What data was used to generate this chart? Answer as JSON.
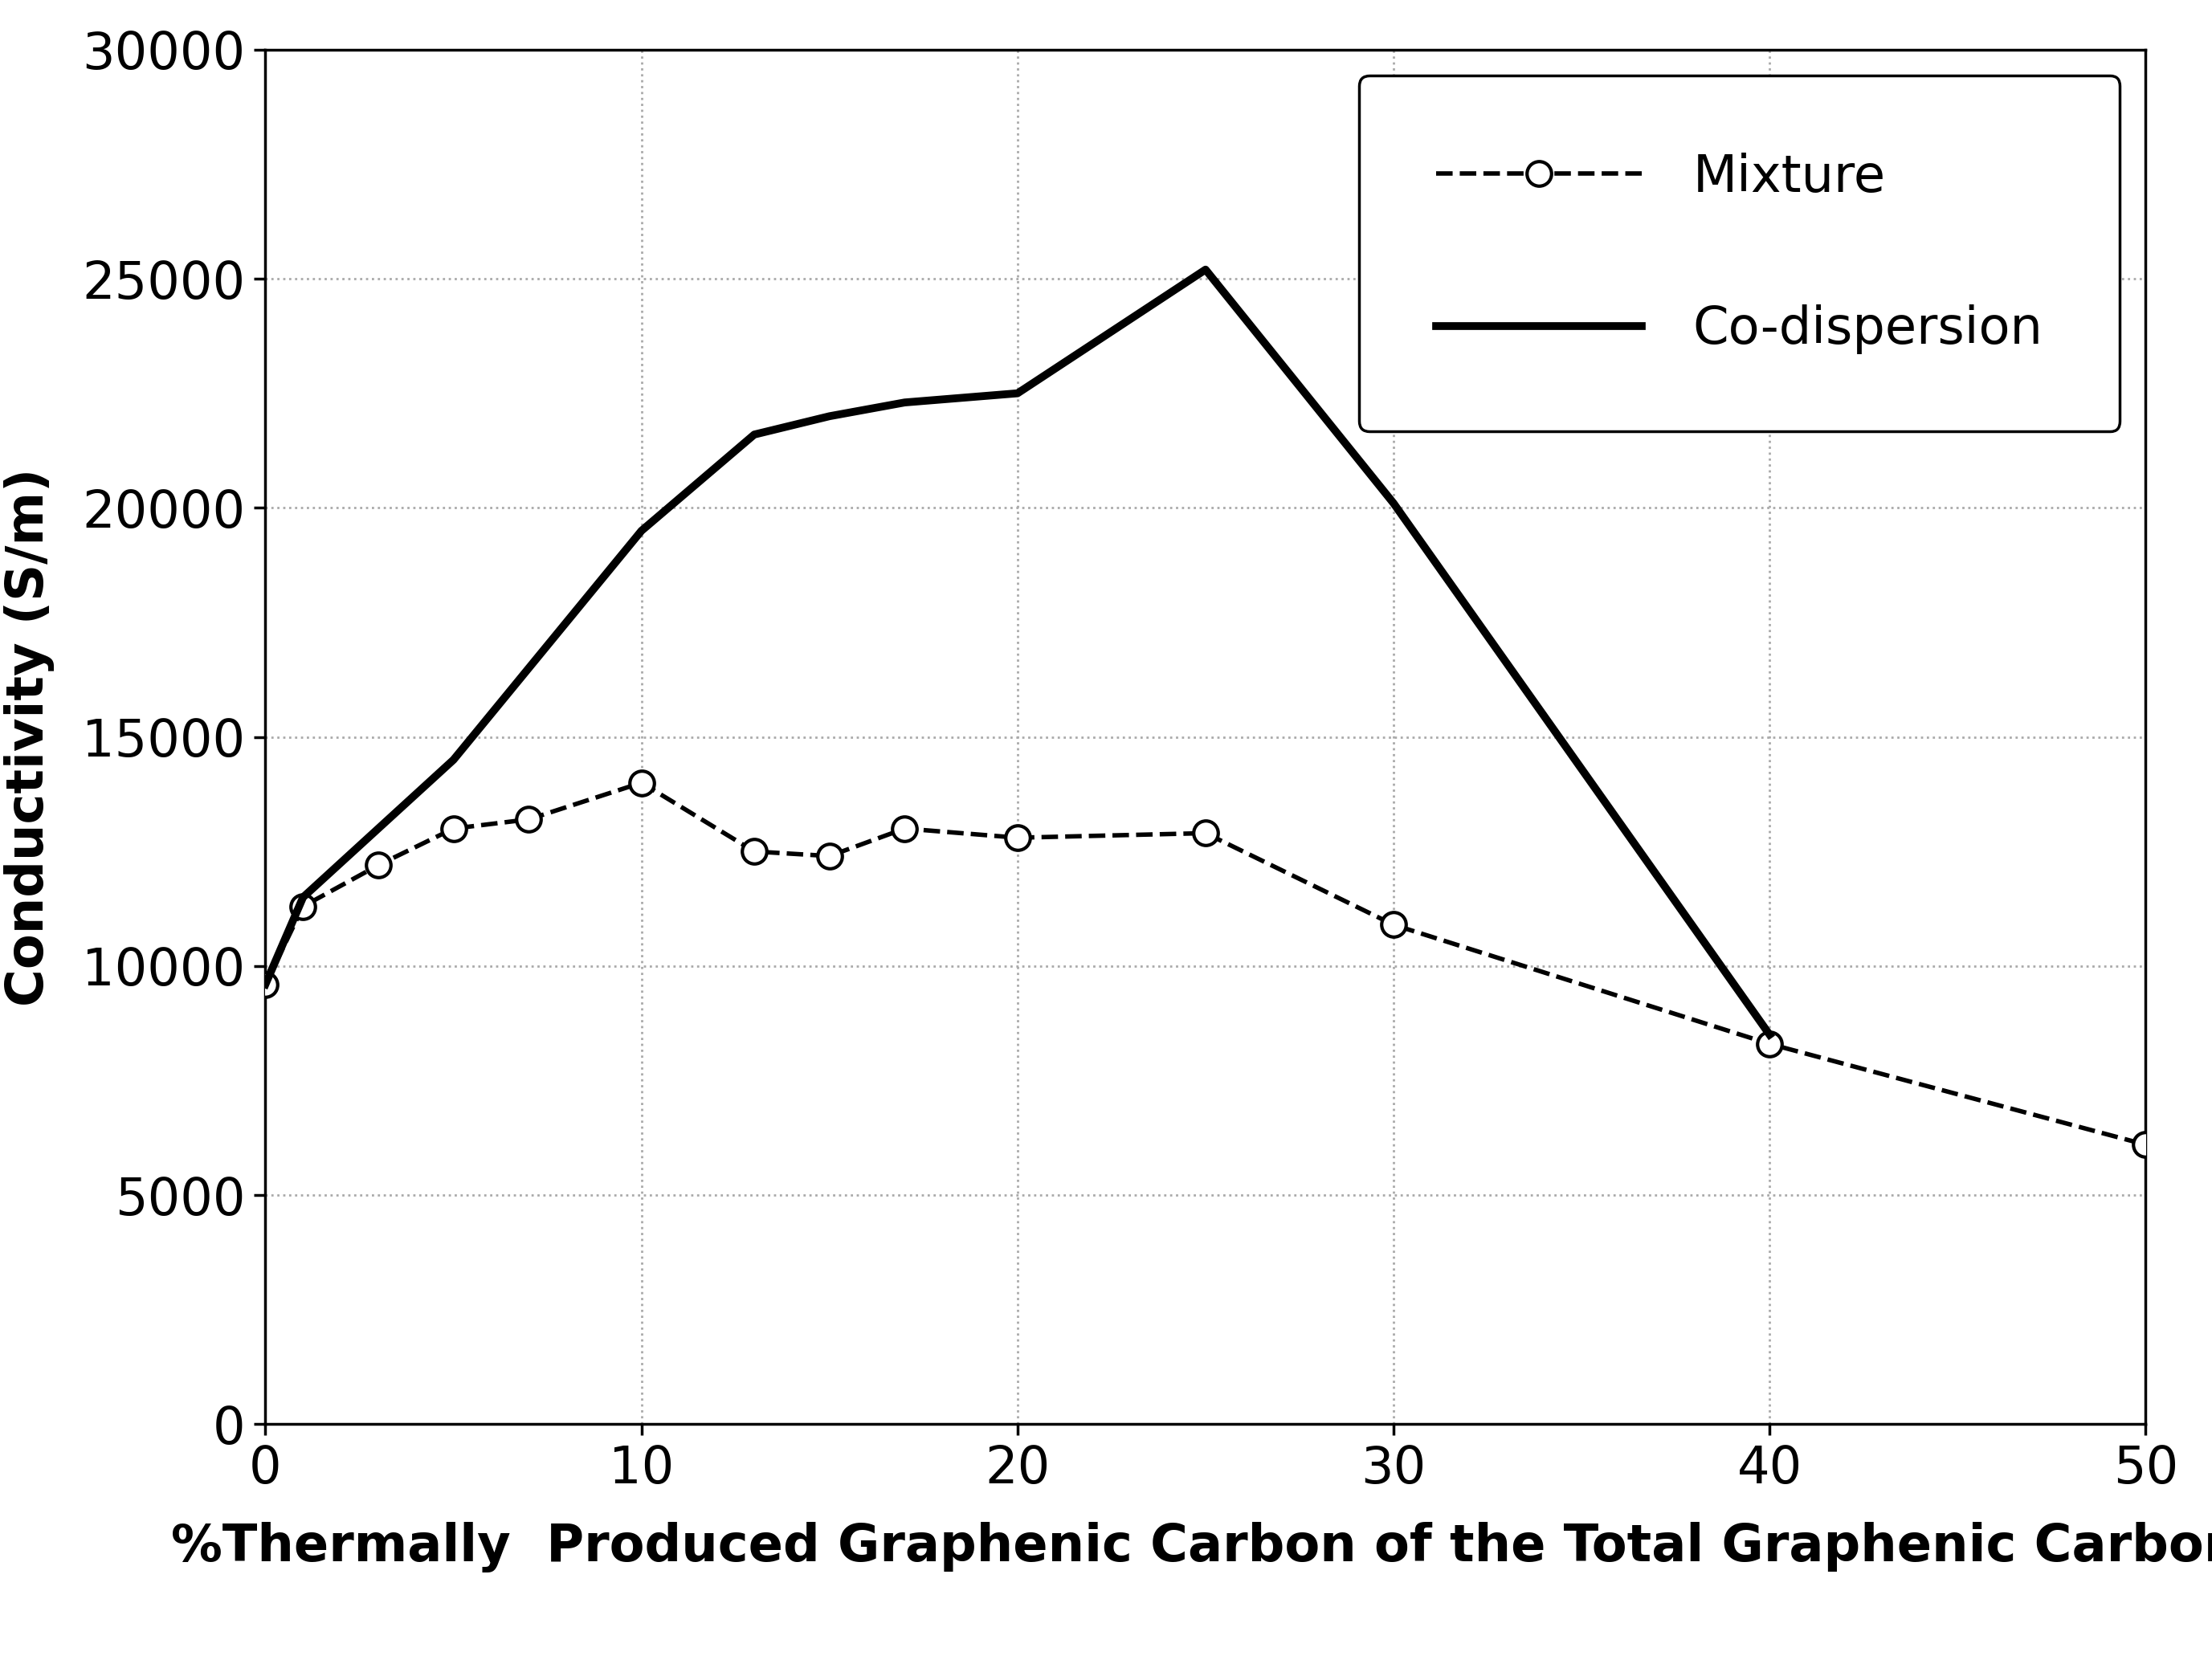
{
  "mixture_x": [
    0,
    1,
    3,
    5,
    7,
    10,
    13,
    15,
    17,
    20,
    25,
    30,
    40,
    50
  ],
  "mixture_y": [
    9600,
    11300,
    12200,
    13000,
    13200,
    14000,
    12500,
    12400,
    13000,
    12800,
    12900,
    10900,
    8300,
    6100
  ],
  "codispersion_x": [
    0,
    1,
    3,
    5,
    7,
    10,
    13,
    15,
    17,
    20,
    25,
    30,
    40
  ],
  "codispersion_y": [
    9600,
    11500,
    13000,
    14500,
    16500,
    19500,
    21600,
    22000,
    22300,
    22500,
    25200,
    20100,
    8500
  ],
  "xlabel": "%Thermally  Produced Graphenic Carbon of the Total Graphenic Carbon",
  "ylabel": "Conductivity (S/m)",
  "xlim": [
    0,
    50
  ],
  "ylim": [
    0,
    30000
  ],
  "yticks": [
    0,
    5000,
    10000,
    15000,
    20000,
    25000,
    30000
  ],
  "xticks": [
    0,
    10,
    20,
    30,
    40,
    50
  ],
  "legend_mixture": "Mixture",
  "legend_codispersion": "Co-dispersion",
  "background_color": "#ffffff",
  "line_color": "#000000",
  "grid_color": "#aaaaaa"
}
